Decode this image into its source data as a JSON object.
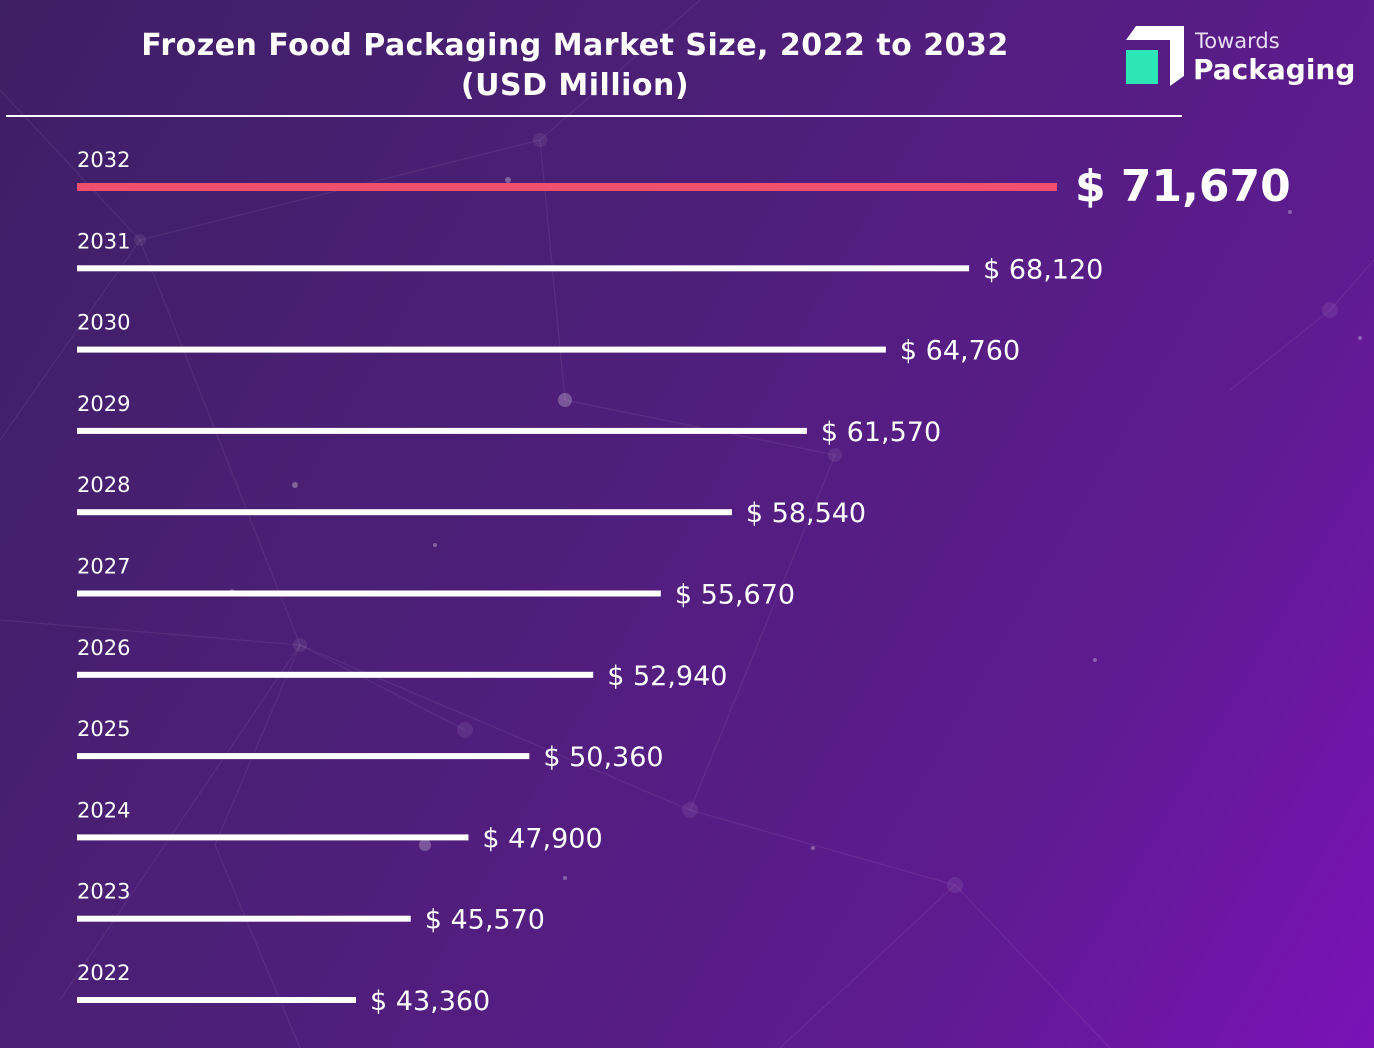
{
  "title": {
    "line1": "Frozen Food Packaging Market Size, 2022 to 2032",
    "line2": "(USD Million)"
  },
  "logo": {
    "top": "Towards",
    "bottom": "Packaging",
    "icon": "towards-packaging-logo-icon",
    "accent_color": "#2ee6b5"
  },
  "colors": {
    "background_start": "#3f1f66",
    "background_end": "#7a12b8",
    "bar_default": "#ffffff",
    "bar_highlight": "#f0506e"
  },
  "chart_data": {
    "type": "bar",
    "orientation": "horizontal",
    "categories": [
      "2032",
      "2031",
      "2030",
      "2029",
      "2028",
      "2027",
      "2026",
      "2025",
      "2024",
      "2023",
      "2022"
    ],
    "values": [
      71670,
      68120,
      64760,
      61570,
      58540,
      55670,
      52940,
      50360,
      47900,
      45570,
      43360
    ],
    "value_labels": [
      "$ 71,670",
      "$ 68,120",
      "$ 64,760",
      "$ 61,570",
      "$ 58,540",
      "$ 55,670",
      "$ 52,940",
      "$ 50,360",
      "$ 47,900",
      "$ 45,570",
      "$ 43,360"
    ],
    "highlight_category": "2032",
    "title": "Frozen Food Packaging Market Size, 2022 to 2032 (USD Million)",
    "xlabel": "",
    "ylabel": "",
    "grid": false,
    "legend": "none"
  }
}
